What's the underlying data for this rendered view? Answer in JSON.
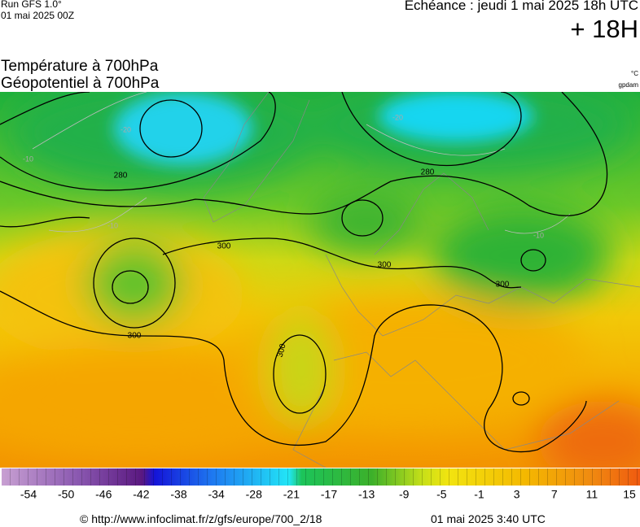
{
  "header": {
    "run": "Run GFS 1.0°",
    "run_date": "01 mai 2025 00Z",
    "echeance": "Echéance : jeudi 1 mai 2025 18h UTC",
    "lead": "+ 18H"
  },
  "titles": {
    "line1": "Température à 700hPa",
    "line2": "Géopotentiel à 700hPa",
    "unit1": "°C",
    "unit2": "gpdam"
  },
  "map": {
    "contour_labels": [
      "280",
      "280",
      "300",
      "300",
      "300",
      "300",
      "300"
    ],
    "isotherm_labels": [
      "-20",
      "-20",
      "-10",
      "-10",
      "-10"
    ]
  },
  "legend": {
    "ticks": [
      -54,
      -50,
      -46,
      -42,
      -38,
      -34,
      -28,
      -21,
      -17,
      -13,
      -9,
      -5,
      -1,
      3,
      7,
      11,
      15
    ]
  },
  "footer": {
    "url": "© http://www.infoclimat.fr/z/gfs/europe/700_2/18",
    "time": "01 mai 2025  3:40 UTC"
  }
}
